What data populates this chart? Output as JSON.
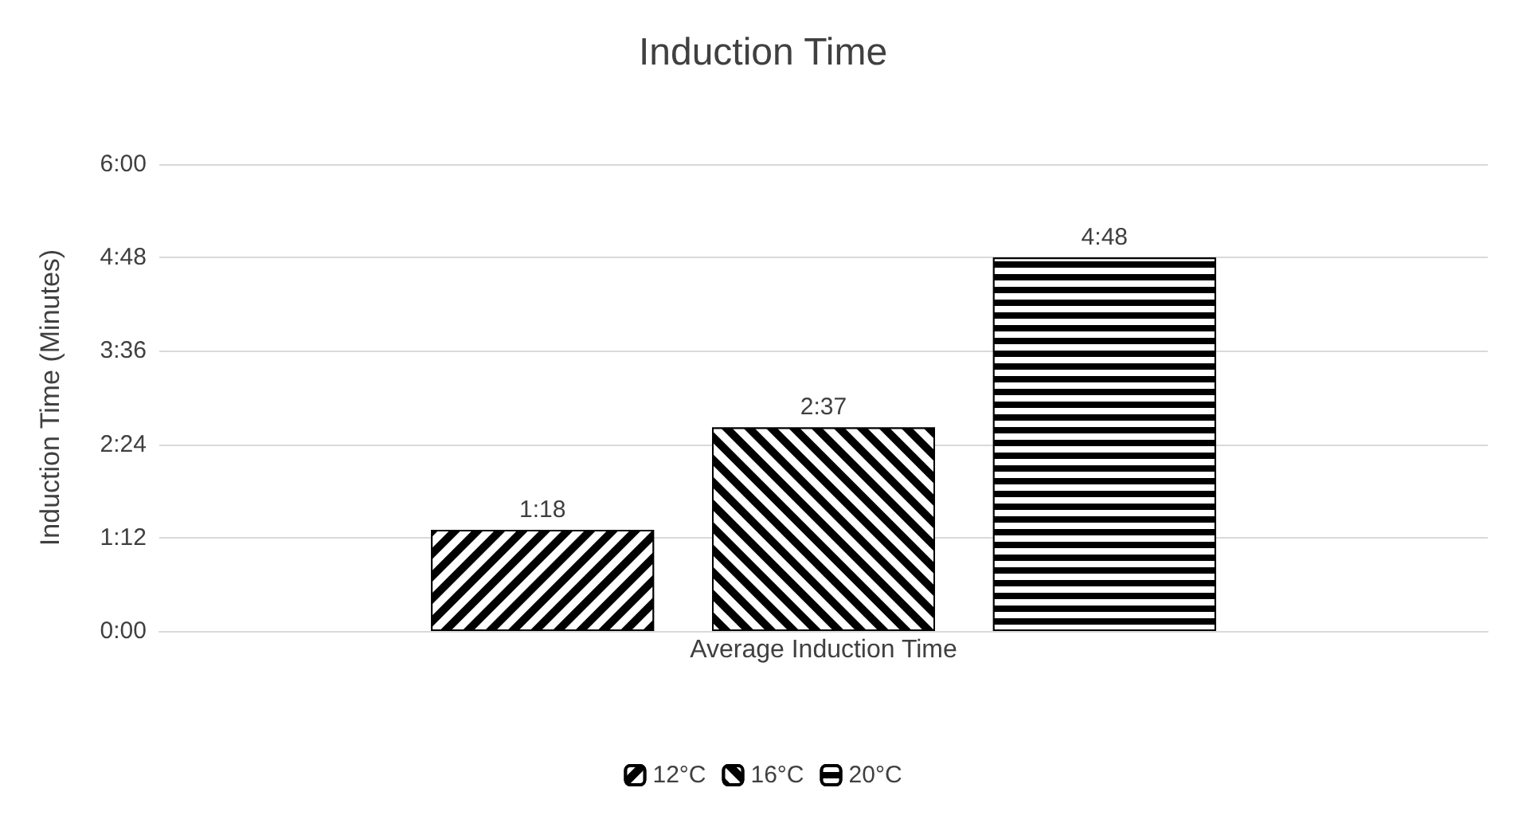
{
  "chart_data": {
    "type": "bar",
    "title": "Induction Time",
    "ylabel": "Induction Time (Minutes)",
    "categories": [
      "Average Induction Time"
    ],
    "series": [
      {
        "name": "12°C",
        "color": "#000000",
        "values": [
          1.3
        ],
        "value_labels": [
          "1:18"
        ]
      },
      {
        "name": "16°C",
        "color": "#000000",
        "values": [
          2.6167
        ],
        "value_labels": [
          "2:37"
        ]
      },
      {
        "name": "20°C",
        "color": "#000000",
        "values": [
          4.8
        ],
        "value_labels": [
          "4:48"
        ]
      }
    ],
    "ylim": [
      0,
      6
    ],
    "yticks": [
      {
        "value": 0,
        "label": "0:00"
      },
      {
        "value": 1.2,
        "label": "1:12"
      },
      {
        "value": 2.4,
        "label": "2:24"
      },
      {
        "value": 3.6,
        "label": "3:36"
      },
      {
        "value": 4.8,
        "label": "4:48"
      },
      {
        "value": 6,
        "label": "6:00"
      }
    ],
    "grid": "y",
    "legend": "bottom"
  }
}
